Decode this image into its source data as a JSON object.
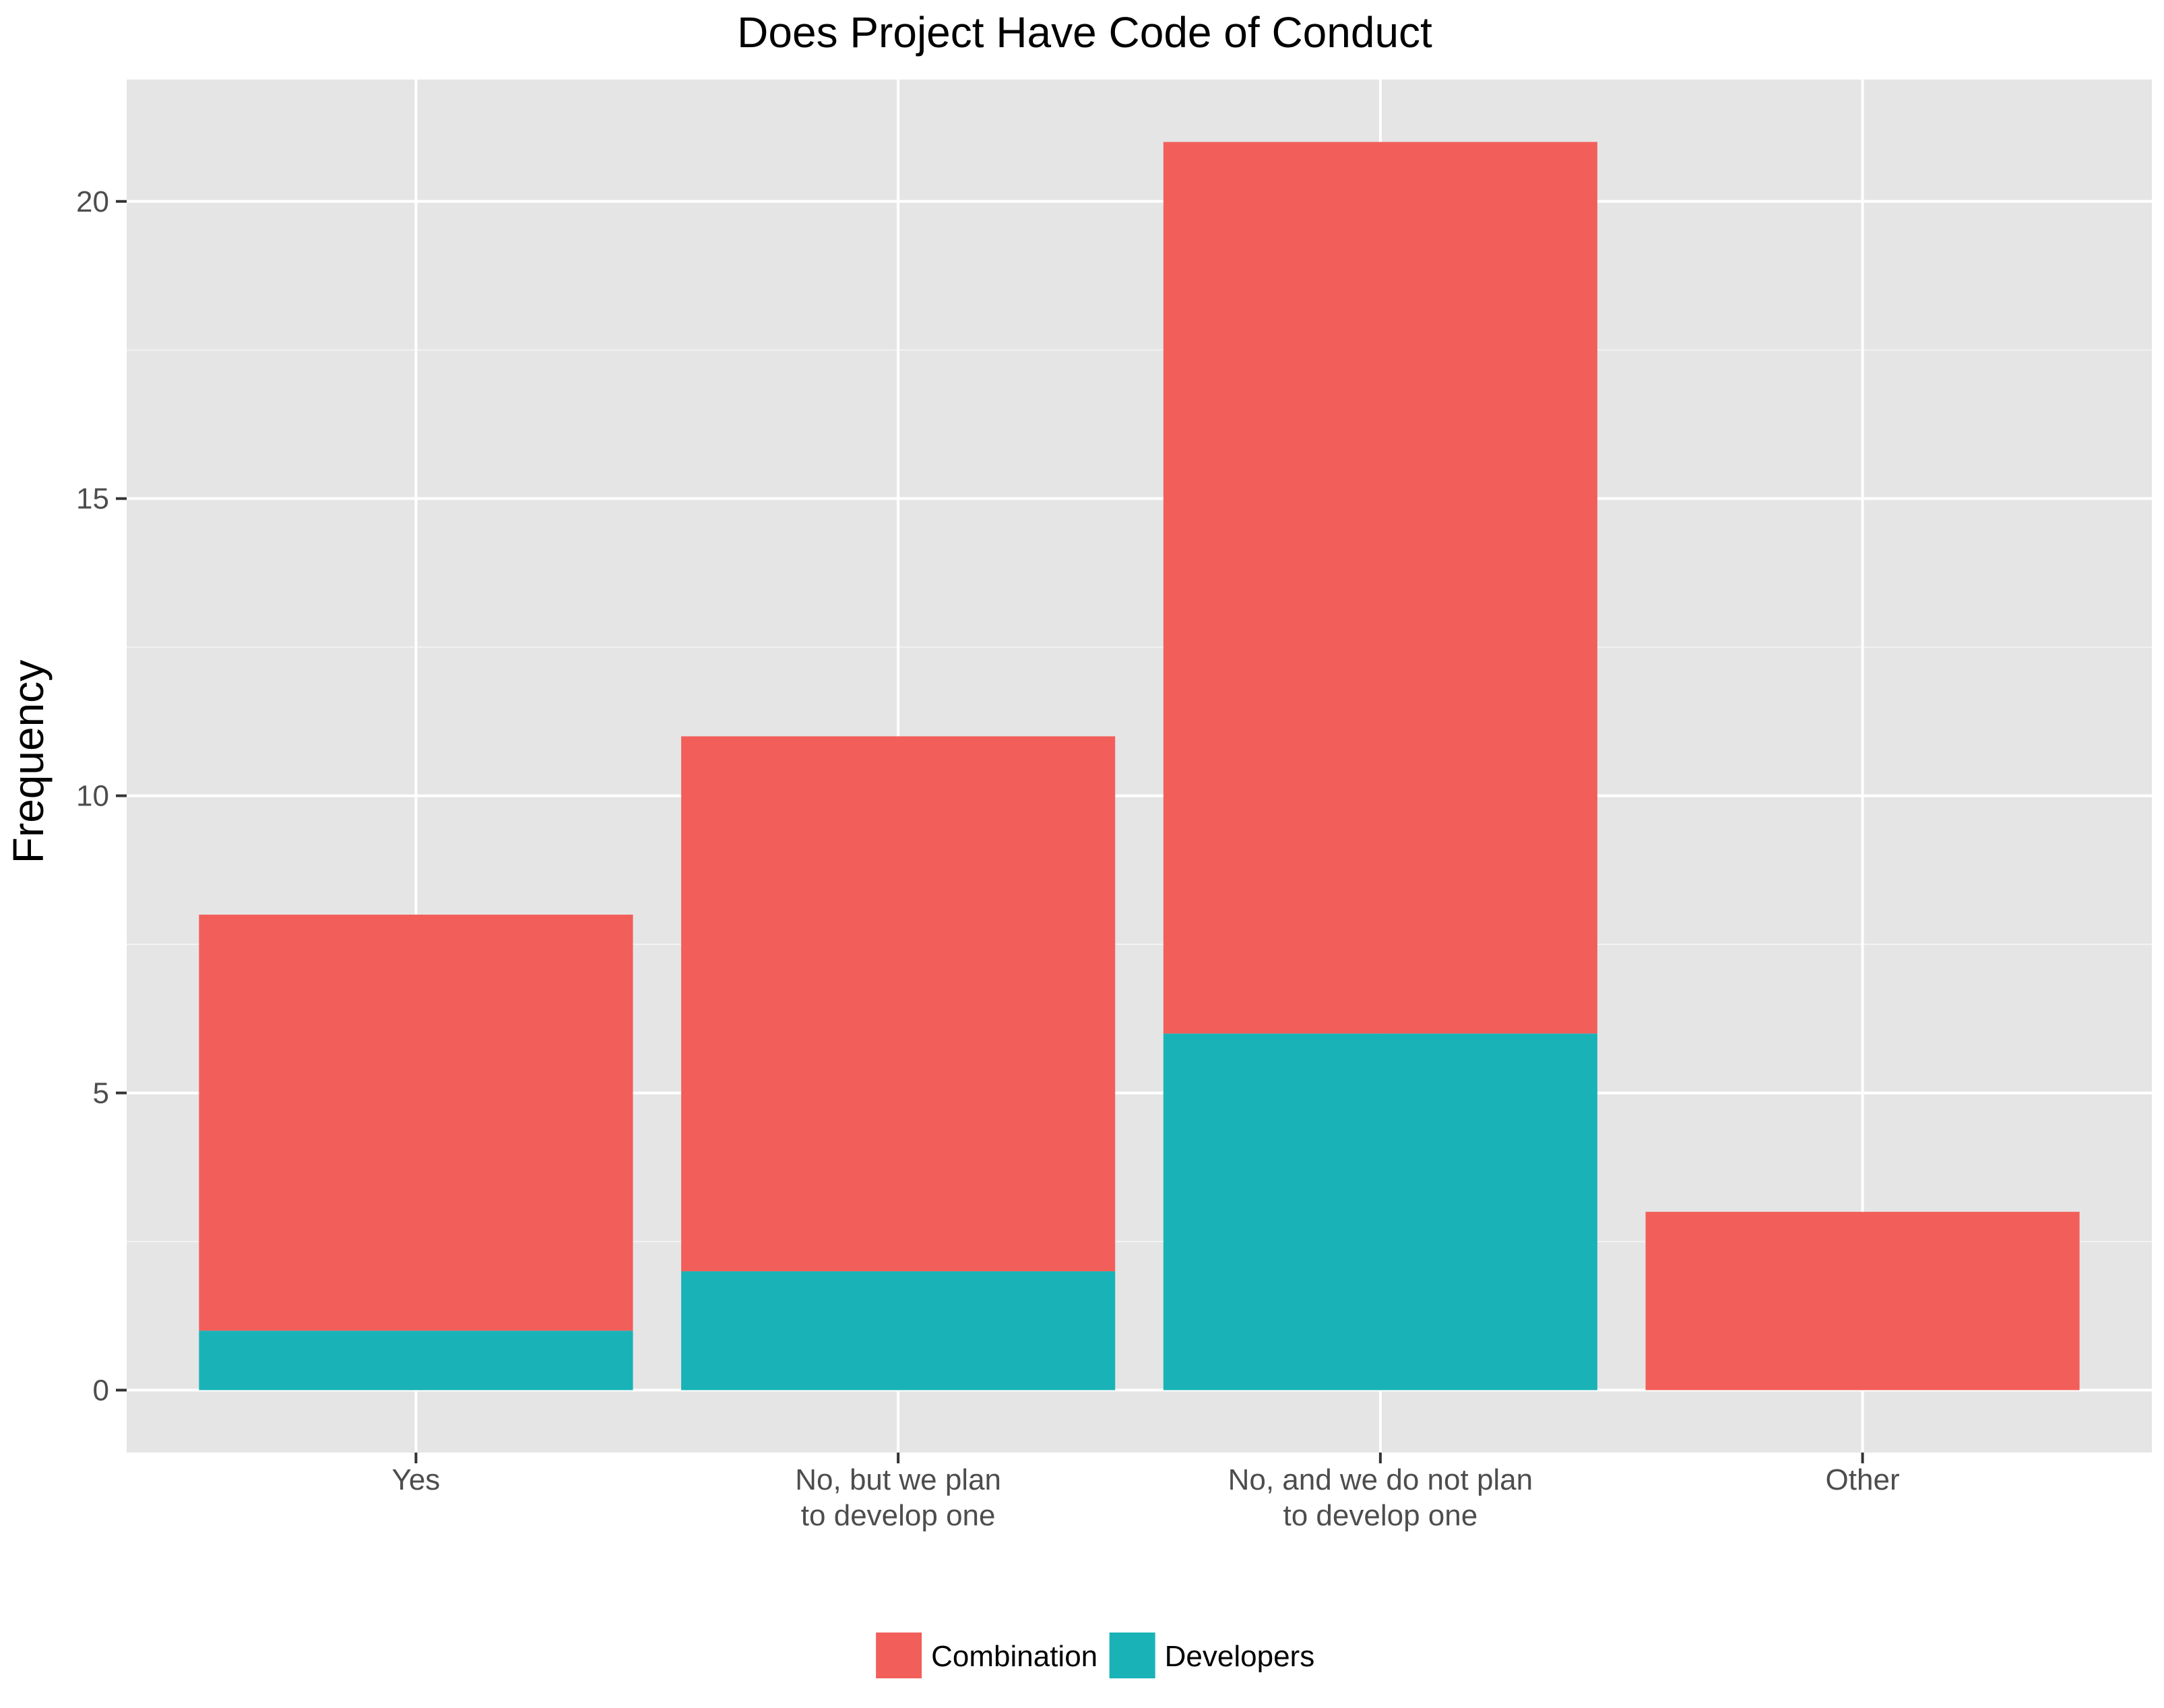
{
  "chart_data": {
    "type": "bar",
    "stacked": true,
    "title": "Does Project Have Code of Conduct",
    "xlabel": "",
    "ylabel": "Frequency",
    "categories": [
      "Yes",
      "No, but we plan to develop one",
      "No, and we do not plan to develop one",
      "Other"
    ],
    "category_lines": [
      [
        "Yes"
      ],
      [
        "No, but we plan",
        "to develop one"
      ],
      [
        "No, and we do not plan",
        "to develop one"
      ],
      [
        "Other"
      ]
    ],
    "series": [
      {
        "name": "Developers",
        "values": [
          1,
          2,
          6,
          0
        ],
        "color": "#19B3B7"
      },
      {
        "name": "Combination",
        "values": [
          7,
          9,
          15,
          3
        ],
        "color": "#F25F5B"
      }
    ],
    "legend": {
      "placement": "bottom",
      "entries": [
        {
          "label": "Combination",
          "color": "#F25F5B"
        },
        {
          "label": "Developers",
          "color": "#19B3B7"
        }
      ]
    },
    "ylim": [
      -1.05,
      22.05
    ],
    "yticks": [
      0,
      5,
      10,
      15,
      20
    ],
    "ytick_labels": [
      "0",
      "5",
      "10",
      "15",
      "20"
    ],
    "grid": true,
    "colors": {
      "panel": "#E5E5E5",
      "grid_major": "#FFFFFF",
      "grid_minor": "#F2F2F2",
      "axis_text": "#4D4D4D",
      "tick": "#333333"
    }
  }
}
